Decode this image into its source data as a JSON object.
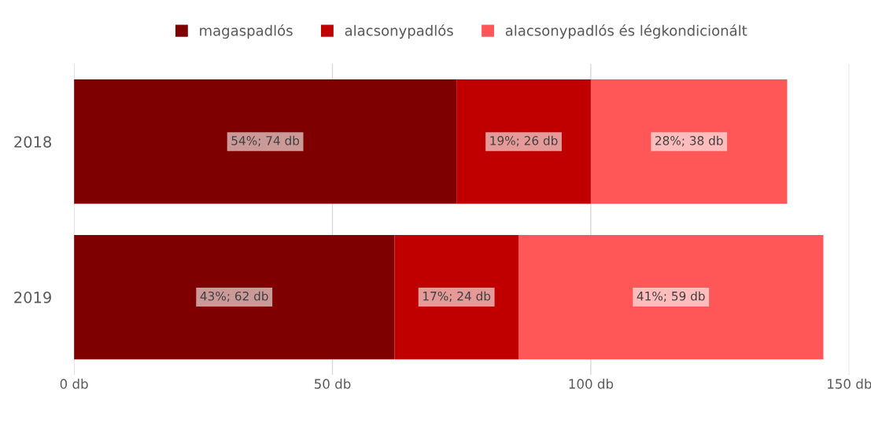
{
  "chart_data": {
    "type": "bar",
    "orientation": "horizontal",
    "stacked": true,
    "categories": [
      "2018",
      "2019"
    ],
    "series": [
      {
        "name": "magaspadlós",
        "color": "#7f0000",
        "values": [
          74,
          62
        ],
        "value_labels": [
          "54%; 74 db",
          "43%; 62 db"
        ]
      },
      {
        "name": "alacsonypadlós",
        "color": "#c00000",
        "values": [
          26,
          24
        ],
        "value_labels": [
          "19%; 26 db",
          "17%; 24 db"
        ]
      },
      {
        "name": "alacsonypadlós és légkondicionált",
        "color": "#ff5757",
        "values": [
          38,
          59
        ],
        "value_labels": [
          "28%; 38 db",
          "41%; 59 db"
        ]
      }
    ],
    "xlim": [
      0,
      150
    ],
    "xticks": [
      {
        "value": 0,
        "label": "0 db"
      },
      {
        "value": 50,
        "label": "50 db"
      },
      {
        "value": 100,
        "label": "100 db"
      },
      {
        "value": 150,
        "label": "150 db"
      }
    ],
    "grid": "x",
    "legend": "top"
  }
}
